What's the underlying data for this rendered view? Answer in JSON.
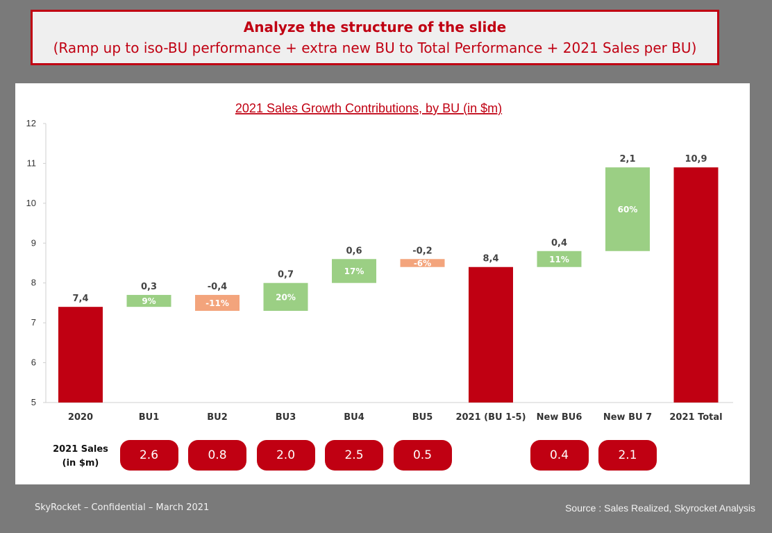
{
  "banner": {
    "line1": "Analyze the structure of the slide",
    "line2": "(Ramp up to iso-BU performance + extra new BU to Total Performance + 2021 Sales per BU)"
  },
  "colors": {
    "accent": "#c00012",
    "positive": "#9bcf84",
    "negative": "#f3a47c"
  },
  "chart_data": {
    "type": "bar",
    "subtype": "waterfall",
    "title": "2021 Sales Growth Contributions, by BU (in $m)",
    "ylim": [
      5,
      12
    ],
    "yticks": [
      5,
      6,
      7,
      8,
      9,
      10,
      11,
      12
    ],
    "grid": false,
    "categories": [
      "2020",
      "BU1",
      "BU2",
      "BU3",
      "BU4",
      "BU5",
      "2021 (BU 1-5)",
      "New BU6",
      "New BU 7",
      "2021 Total"
    ],
    "bars": [
      {
        "kind": "total",
        "start": 5,
        "end": 7.4,
        "label": "7,4",
        "pct": ""
      },
      {
        "kind": "increase",
        "start": 7.4,
        "end": 7.7,
        "label": "0,3",
        "pct": "9%"
      },
      {
        "kind": "decrease",
        "start": 7.7,
        "end": 7.3,
        "label": "-0,4",
        "pct": "-11%"
      },
      {
        "kind": "increase",
        "start": 7.3,
        "end": 8.0,
        "label": "0,7",
        "pct": "20%"
      },
      {
        "kind": "increase",
        "start": 8.0,
        "end": 8.6,
        "label": "0,6",
        "pct": "17%"
      },
      {
        "kind": "decrease",
        "start": 8.6,
        "end": 8.4,
        "label": "-0,2",
        "pct": "-6%"
      },
      {
        "kind": "total",
        "start": 5,
        "end": 8.4,
        "label": "8,4",
        "pct": ""
      },
      {
        "kind": "increase",
        "start": 8.4,
        "end": 8.8,
        "label": "0,4",
        "pct": "11%"
      },
      {
        "kind": "increase",
        "start": 8.8,
        "end": 10.9,
        "label": "2,1",
        "pct": "60%"
      },
      {
        "kind": "total",
        "start": 5,
        "end": 10.9,
        "label": "10,9",
        "pct": ""
      }
    ]
  },
  "sales": {
    "label_line1": "2021 Sales",
    "label_line2": "(in $m)",
    "values": [
      "2.6",
      "0.8",
      "2.0",
      "2.5",
      "0.5",
      "",
      "0.4",
      "2.1",
      ""
    ]
  },
  "footer": {
    "left": "SkyRocket – Confidential – March 2021",
    "right": "Source : Sales Realized, Skyrocket Analysis"
  }
}
